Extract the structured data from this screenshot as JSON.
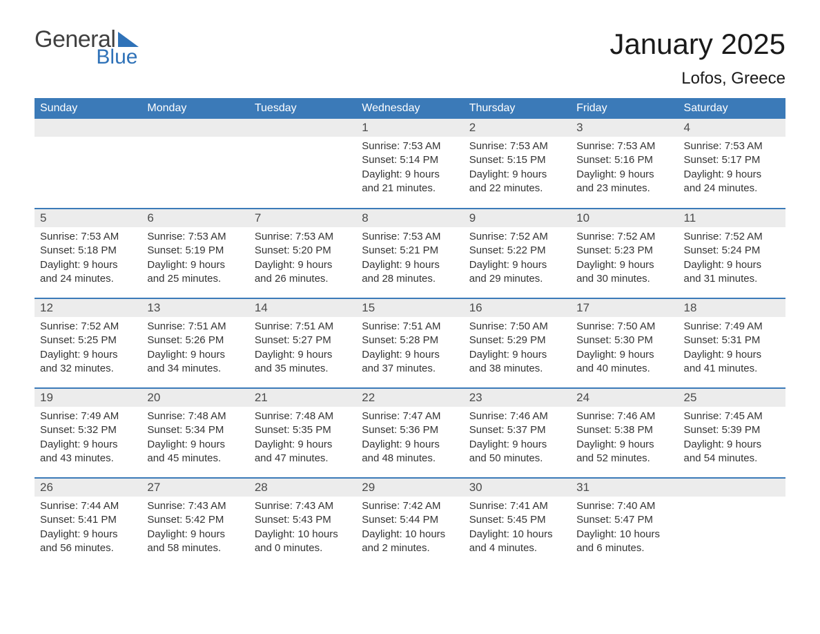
{
  "brand": {
    "word1": "General",
    "word2": "Blue",
    "text_color": "#404040",
    "accent_color": "#2f72b8"
  },
  "title": "January 2025",
  "location": "Lofos, Greece",
  "colors": {
    "header_bg": "#3b7ab8",
    "header_text": "#ffffff",
    "daynum_bg": "#ececec",
    "daynum_text": "#4a4a4a",
    "body_text": "#333333",
    "row_border": "#3b7ab8",
    "page_bg": "#ffffff"
  },
  "day_headers": [
    "Sunday",
    "Monday",
    "Tuesday",
    "Wednesday",
    "Thursday",
    "Friday",
    "Saturday"
  ],
  "weeks": [
    [
      {
        "day": "",
        "sunrise": "",
        "sunset": "",
        "daylight": ""
      },
      {
        "day": "",
        "sunrise": "",
        "sunset": "",
        "daylight": ""
      },
      {
        "day": "",
        "sunrise": "",
        "sunset": "",
        "daylight": ""
      },
      {
        "day": "1",
        "sunrise": "7:53 AM",
        "sunset": "5:14 PM",
        "daylight": "9 hours and 21 minutes."
      },
      {
        "day": "2",
        "sunrise": "7:53 AM",
        "sunset": "5:15 PM",
        "daylight": "9 hours and 22 minutes."
      },
      {
        "day": "3",
        "sunrise": "7:53 AM",
        "sunset": "5:16 PM",
        "daylight": "9 hours and 23 minutes."
      },
      {
        "day": "4",
        "sunrise": "7:53 AM",
        "sunset": "5:17 PM",
        "daylight": "9 hours and 24 minutes."
      }
    ],
    [
      {
        "day": "5",
        "sunrise": "7:53 AM",
        "sunset": "5:18 PM",
        "daylight": "9 hours and 24 minutes."
      },
      {
        "day": "6",
        "sunrise": "7:53 AM",
        "sunset": "5:19 PM",
        "daylight": "9 hours and 25 minutes."
      },
      {
        "day": "7",
        "sunrise": "7:53 AM",
        "sunset": "5:20 PM",
        "daylight": "9 hours and 26 minutes."
      },
      {
        "day": "8",
        "sunrise": "7:53 AM",
        "sunset": "5:21 PM",
        "daylight": "9 hours and 28 minutes."
      },
      {
        "day": "9",
        "sunrise": "7:52 AM",
        "sunset": "5:22 PM",
        "daylight": "9 hours and 29 minutes."
      },
      {
        "day": "10",
        "sunrise": "7:52 AM",
        "sunset": "5:23 PM",
        "daylight": "9 hours and 30 minutes."
      },
      {
        "day": "11",
        "sunrise": "7:52 AM",
        "sunset": "5:24 PM",
        "daylight": "9 hours and 31 minutes."
      }
    ],
    [
      {
        "day": "12",
        "sunrise": "7:52 AM",
        "sunset": "5:25 PM",
        "daylight": "9 hours and 32 minutes."
      },
      {
        "day": "13",
        "sunrise": "7:51 AM",
        "sunset": "5:26 PM",
        "daylight": "9 hours and 34 minutes."
      },
      {
        "day": "14",
        "sunrise": "7:51 AM",
        "sunset": "5:27 PM",
        "daylight": "9 hours and 35 minutes."
      },
      {
        "day": "15",
        "sunrise": "7:51 AM",
        "sunset": "5:28 PM",
        "daylight": "9 hours and 37 minutes."
      },
      {
        "day": "16",
        "sunrise": "7:50 AM",
        "sunset": "5:29 PM",
        "daylight": "9 hours and 38 minutes."
      },
      {
        "day": "17",
        "sunrise": "7:50 AM",
        "sunset": "5:30 PM",
        "daylight": "9 hours and 40 minutes."
      },
      {
        "day": "18",
        "sunrise": "7:49 AM",
        "sunset": "5:31 PM",
        "daylight": "9 hours and 41 minutes."
      }
    ],
    [
      {
        "day": "19",
        "sunrise": "7:49 AM",
        "sunset": "5:32 PM",
        "daylight": "9 hours and 43 minutes."
      },
      {
        "day": "20",
        "sunrise": "7:48 AM",
        "sunset": "5:34 PM",
        "daylight": "9 hours and 45 minutes."
      },
      {
        "day": "21",
        "sunrise": "7:48 AM",
        "sunset": "5:35 PM",
        "daylight": "9 hours and 47 minutes."
      },
      {
        "day": "22",
        "sunrise": "7:47 AM",
        "sunset": "5:36 PM",
        "daylight": "9 hours and 48 minutes."
      },
      {
        "day": "23",
        "sunrise": "7:46 AM",
        "sunset": "5:37 PM",
        "daylight": "9 hours and 50 minutes."
      },
      {
        "day": "24",
        "sunrise": "7:46 AM",
        "sunset": "5:38 PM",
        "daylight": "9 hours and 52 minutes."
      },
      {
        "day": "25",
        "sunrise": "7:45 AM",
        "sunset": "5:39 PM",
        "daylight": "9 hours and 54 minutes."
      }
    ],
    [
      {
        "day": "26",
        "sunrise": "7:44 AM",
        "sunset": "5:41 PM",
        "daylight": "9 hours and 56 minutes."
      },
      {
        "day": "27",
        "sunrise": "7:43 AM",
        "sunset": "5:42 PM",
        "daylight": "9 hours and 58 minutes."
      },
      {
        "day": "28",
        "sunrise": "7:43 AM",
        "sunset": "5:43 PM",
        "daylight": "10 hours and 0 minutes."
      },
      {
        "day": "29",
        "sunrise": "7:42 AM",
        "sunset": "5:44 PM",
        "daylight": "10 hours and 2 minutes."
      },
      {
        "day": "30",
        "sunrise": "7:41 AM",
        "sunset": "5:45 PM",
        "daylight": "10 hours and 4 minutes."
      },
      {
        "day": "31",
        "sunrise": "7:40 AM",
        "sunset": "5:47 PM",
        "daylight": "10 hours and 6 minutes."
      },
      {
        "day": "",
        "sunrise": "",
        "sunset": "",
        "daylight": ""
      }
    ]
  ],
  "labels": {
    "sunrise": "Sunrise:",
    "sunset": "Sunset:",
    "daylight": "Daylight:"
  }
}
